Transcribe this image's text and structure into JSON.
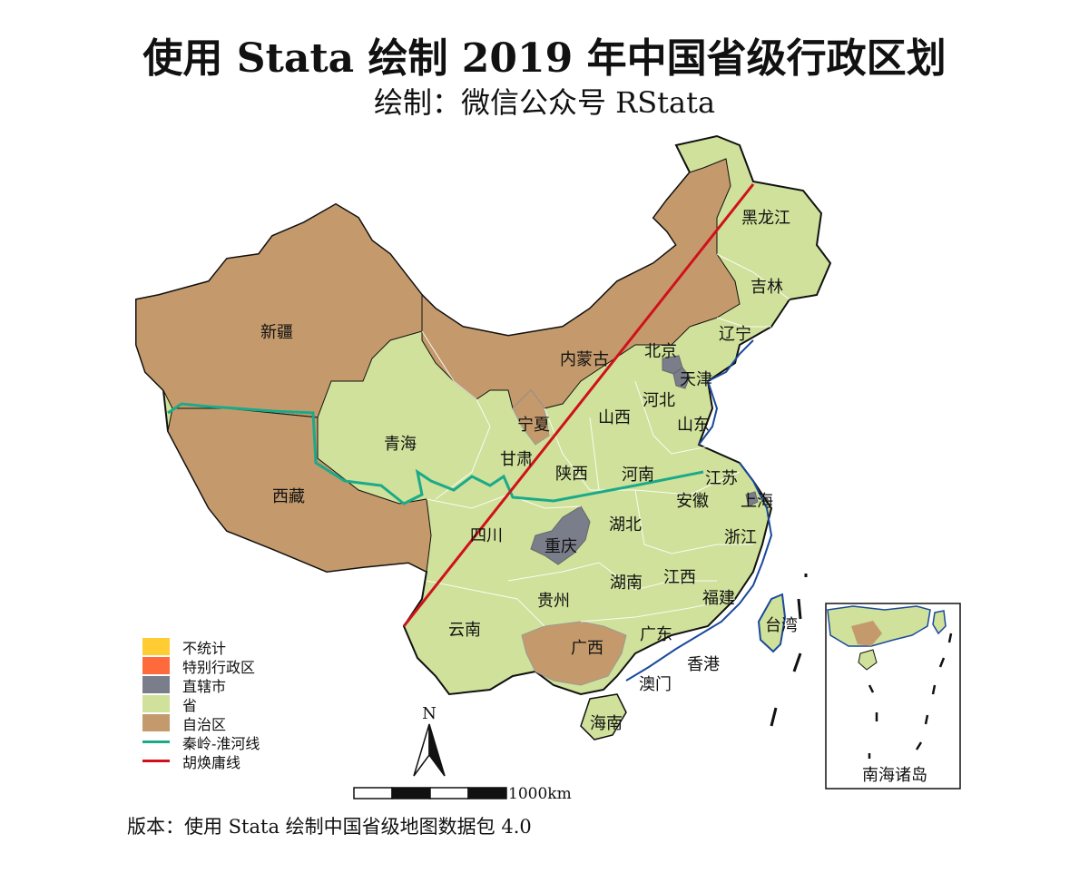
{
  "title": "使用 Stata 绘制 2019 年中国省级行政区划",
  "subtitle": "绘制：微信公众号 RStata",
  "footer": "版本：使用 Stata 绘制中国省级地图数据包 4.0",
  "north_label": "N",
  "scale_label": "1000km",
  "inset_label": "南海诸岛",
  "colors": {
    "province": "#cfe19a",
    "autonomous": "#c49a6c",
    "municipality": "#7a7e8a",
    "sar": "#ff6a3d",
    "none": "#ffcc33",
    "qinling_line": "#1aaa8a",
    "hu_line": "#d0111b",
    "border": "#111111",
    "coast": "#1a4a9a"
  },
  "legend": [
    {
      "label": "不统计",
      "kind": "swatch",
      "color": "#ffcc33"
    },
    {
      "label": "特别行政区",
      "kind": "swatch",
      "color": "#ff6a3d"
    },
    {
      "label": "直辖市",
      "kind": "swatch",
      "color": "#7a7e8a"
    },
    {
      "label": "省",
      "kind": "swatch",
      "color": "#cfe19a"
    },
    {
      "label": "自治区",
      "kind": "swatch",
      "color": "#c49a6c"
    },
    {
      "label": "秦岭-淮河线",
      "kind": "line",
      "color": "#1aaa8a"
    },
    {
      "label": "胡焕庸线",
      "kind": "line",
      "color": "#d0111b"
    }
  ],
  "regions": {
    "xinjiang": "新疆",
    "xizang": "西藏",
    "qinghai": "青海",
    "gansu": "甘肃",
    "ningxia": "宁夏",
    "neimenggu": "内蒙古",
    "heilongjiang": "黑龙江",
    "jilin": "吉林",
    "liaoning": "辽宁",
    "beijing": "北京",
    "tianjin": "天津",
    "hebei": "河北",
    "shanxi": "山西",
    "shandong": "山东",
    "shaanxi": "陕西",
    "henan": "河南",
    "jiangsu": "江苏",
    "shanghai": "上海",
    "anhui": "安徽",
    "sichuan": "四川",
    "chongqing": "重庆",
    "hubei": "湖北",
    "zhejiang": "浙江",
    "hunan": "湖南",
    "jiangxi": "江西",
    "guizhou": "贵州",
    "fujian": "福建",
    "yunnan": "云南",
    "guangxi": "广西",
    "guangdong": "广东",
    "taiwan": "台湾",
    "xianggang": "香港",
    "aomen": "澳门",
    "hainan": "海南"
  }
}
